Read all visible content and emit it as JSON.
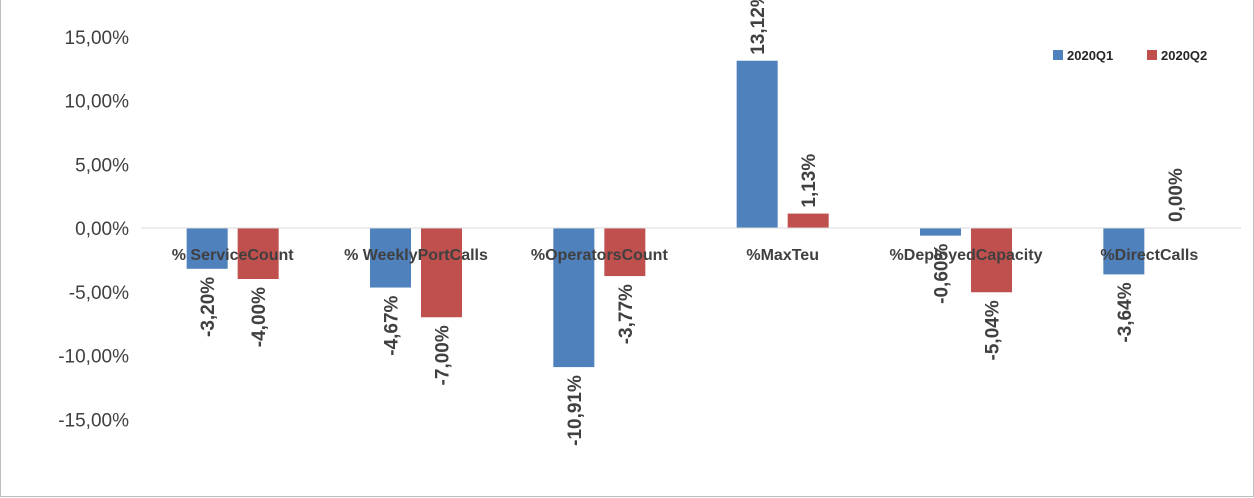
{
  "chart_data": {
    "type": "bar",
    "title": "",
    "xlabel": "",
    "ylabel": "",
    "categories": [
      "% ServiceCount",
      "% WeeklyPortCalls",
      "%OperatorsCount",
      "%MaxTeu",
      "%DeployedCapacity",
      "%DirectCalls"
    ],
    "series": [
      {
        "name": "2020Q1",
        "values": [
          -3.2,
          -4.67,
          -10.91,
          13.12,
          -0.6,
          -3.64
        ],
        "labels": [
          "-3,20%",
          "-4,67%",
          "-10,91%",
          "13,12%",
          "-0,60%",
          "-3,64%"
        ],
        "color": "#4f81bd"
      },
      {
        "name": "2020Q2",
        "values": [
          -4.0,
          -7.0,
          -3.77,
          1.13,
          -5.04,
          0.0
        ],
        "labels": [
          "-4,00%",
          "-7,00%",
          "-3,77%",
          "1,13%",
          "-5,04%",
          "0,00%"
        ],
        "color": "#c0504d"
      }
    ],
    "yticks": [
      15,
      10,
      5,
      0,
      -5,
      -10,
      -15
    ],
    "ytick_labels": [
      "15,00%",
      "10,00%",
      "5,00%",
      "0,00%",
      "-5,00%",
      "-10,00%",
      "-15,00%"
    ],
    "ylim": [
      -15,
      15
    ],
    "grid": false,
    "legend_position": "top-right",
    "data_labels_rotation": "vertical"
  }
}
